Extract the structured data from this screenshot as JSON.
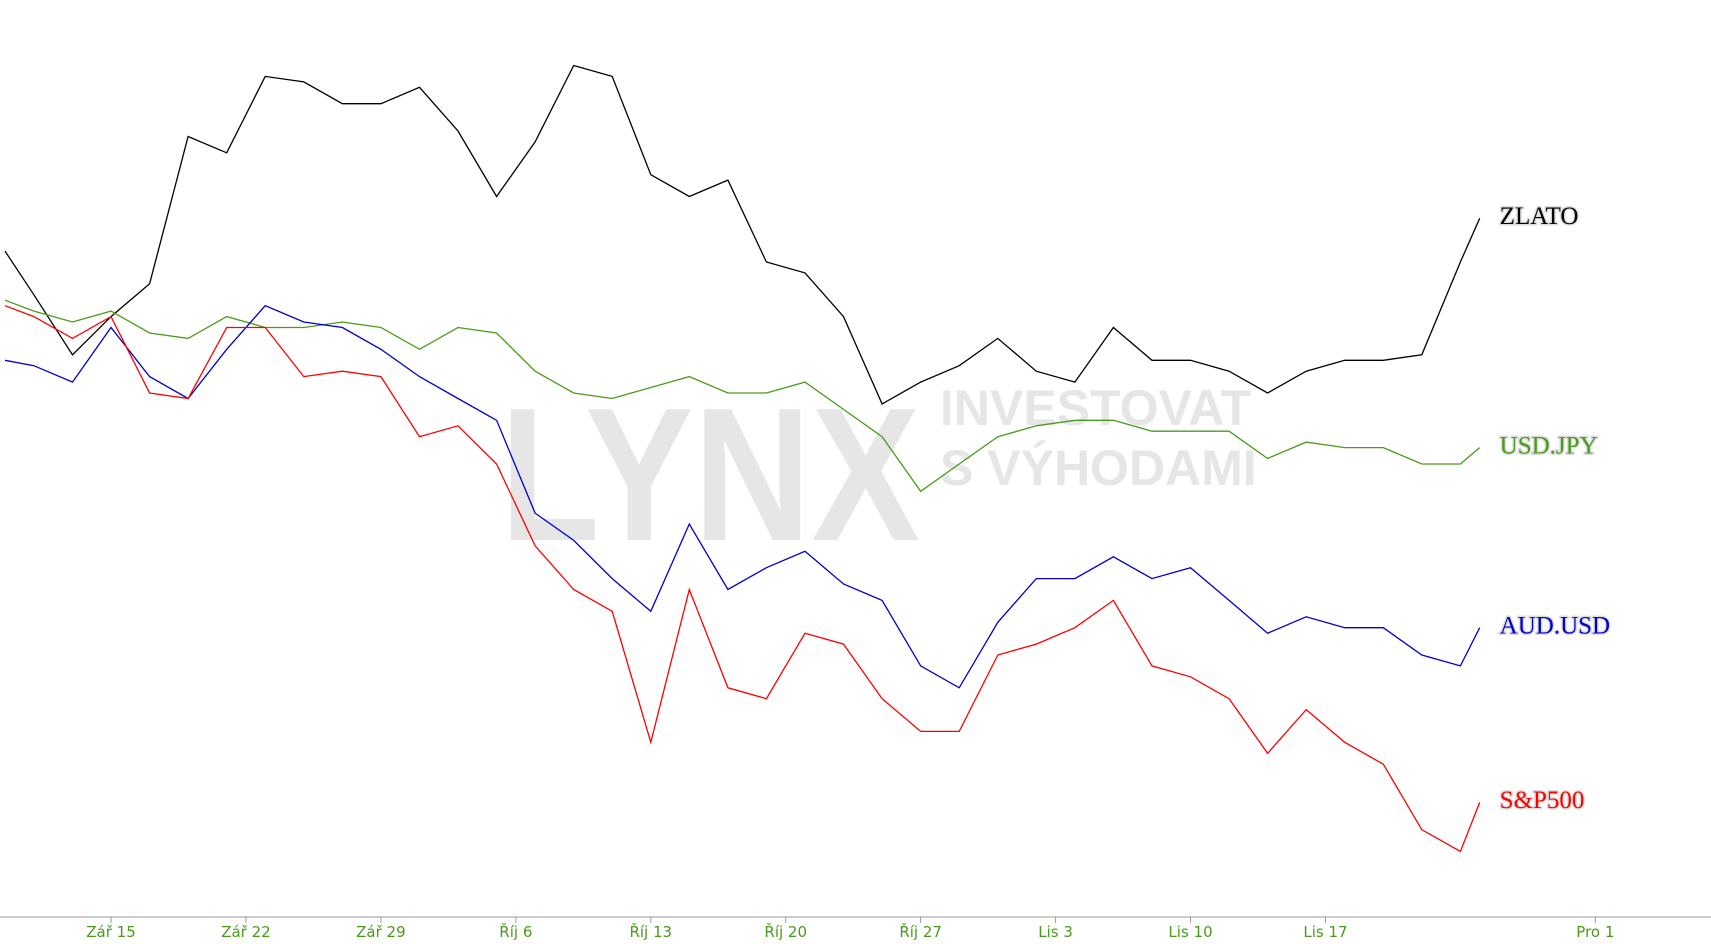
{
  "chart_data": {
    "type": "line",
    "watermark": {
      "logo": "LYNX",
      "line1": "INVESTOVAT",
      "line2": "S VÝHODAMI"
    },
    "x": [
      -5.5,
      -4,
      -2,
      0,
      2,
      4,
      6,
      8,
      10,
      12,
      14,
      16,
      18,
      20,
      22,
      24,
      26,
      28,
      30,
      32,
      34,
      36,
      38,
      40,
      42,
      44,
      46,
      48,
      50,
      52,
      54,
      56,
      58,
      60,
      62,
      64,
      66,
      68,
      70,
      71
    ],
    "xlim": [
      -5.76,
      83
    ],
    "xticks": [
      {
        "value": 0,
        "label": "Zář 15"
      },
      {
        "value": 7,
        "label": "Zář 22"
      },
      {
        "value": 14,
        "label": "Zář 29"
      },
      {
        "value": 21,
        "label": "Říj 6"
      },
      {
        "value": 28,
        "label": "Říj 13"
      },
      {
        "value": 35,
        "label": "Říj 20"
      },
      {
        "value": 42,
        "label": "Říj 27"
      },
      {
        "value": 49,
        "label": "Lis 3"
      },
      {
        "value": 56,
        "label": "Lis 10"
      },
      {
        "value": 63,
        "label": "Lis 17"
      },
      {
        "value": 77,
        "label": "Pro 1"
      }
    ],
    "ylim": [
      60,
      900
    ],
    "series": [
      {
        "name": "ZLATO",
        "color": "#000000",
        "values": [
          670,
          630,
          575,
          610,
          640,
          775,
          760,
          830,
          825,
          805,
          805,
          820,
          780,
          720,
          770,
          840,
          830,
          740,
          720,
          735,
          660,
          650,
          610,
          530,
          550,
          565,
          590,
          560,
          550,
          600,
          570,
          570,
          560,
          540,
          560,
          570,
          570,
          575,
          660,
          700
        ]
      },
      {
        "name": "USD.JPY",
        "color": "#4a9a1c",
        "values": [
          625,
          615,
          605,
          615,
          595,
          590,
          610,
          600,
          600,
          605,
          600,
          580,
          600,
          595,
          560,
          540,
          535,
          545,
          555,
          540,
          540,
          550,
          525,
          500,
          450,
          475,
          500,
          510,
          515,
          515,
          505,
          505,
          505,
          480,
          495,
          490,
          490,
          475,
          475,
          490
        ]
      },
      {
        "name": "AUD.USD",
        "color": "#0000cc",
        "values": [
          570,
          565,
          550,
          600,
          555,
          535,
          580,
          620,
          605,
          600,
          580,
          555,
          535,
          515,
          430,
          405,
          370,
          340,
          420,
          360,
          380,
          395,
          365,
          350,
          290,
          270,
          330,
          370,
          370,
          390,
          370,
          380,
          350,
          320,
          335,
          325,
          325,
          300,
          290,
          325
        ]
      },
      {
        "name": "S&P500",
        "color": "#ff0000",
        "values": [
          620,
          610,
          590,
          610,
          540,
          535,
          600,
          600,
          555,
          560,
          555,
          500,
          510,
          475,
          400,
          360,
          340,
          220,
          360,
          270,
          260,
          320,
          310,
          260,
          230,
          230,
          300,
          310,
          325,
          350,
          290,
          280,
          260,
          210,
          250,
          220,
          200,
          140,
          120,
          165
        ]
      }
    ]
  }
}
